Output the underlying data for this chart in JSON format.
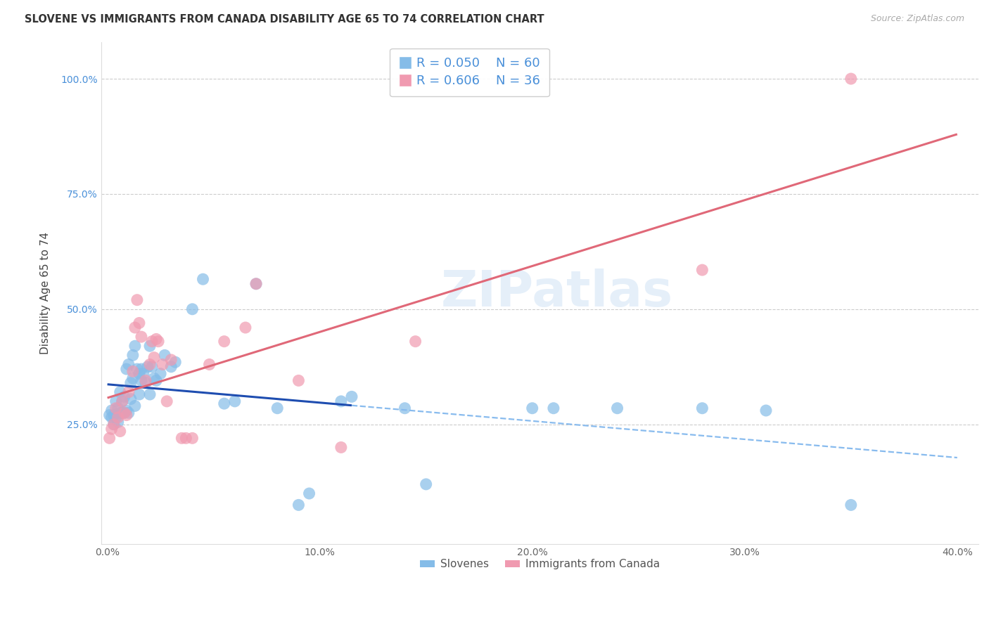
{
  "title": "SLOVENE VS IMMIGRANTS FROM CANADA DISABILITY AGE 65 TO 74 CORRELATION CHART",
  "source": "Source: ZipAtlas.com",
  "ylabel": "Disability Age 65 to 74",
  "xlim": [
    -0.003,
    0.41
  ],
  "ylim": [
    -0.01,
    1.08
  ],
  "xticks": [
    0.0,
    0.1,
    0.2,
    0.3,
    0.4
  ],
  "xtick_labels": [
    "0.0%",
    "10.0%",
    "20.0%",
    "30.0%",
    "40.0%"
  ],
  "yticks": [
    0.25,
    0.5,
    0.75,
    1.0
  ],
  "ytick_labels": [
    "25.0%",
    "50.0%",
    "75.0%",
    "100.0%"
  ],
  "grid_color": "#cccccc",
  "background_color": "#ffffff",
  "slovene_color": "#85bce8",
  "canada_color": "#f09ab0",
  "slovene_line_color": "#1e4db0",
  "slovene_dash_color": "#88bbee",
  "canada_line_color": "#e06878",
  "legend_R_slovene": "R = 0.050",
  "legend_N_slovene": "N = 60",
  "legend_R_canada": "R = 0.606",
  "legend_N_canada": "N = 36",
  "watermark": "ZIPatlas",
  "slovene_scatter": [
    [
      0.001,
      0.27
    ],
    [
      0.002,
      0.265
    ],
    [
      0.002,
      0.28
    ],
    [
      0.003,
      0.25
    ],
    [
      0.003,
      0.27
    ],
    [
      0.004,
      0.3
    ],
    [
      0.004,
      0.265
    ],
    [
      0.005,
      0.285
    ],
    [
      0.005,
      0.255
    ],
    [
      0.006,
      0.32
    ],
    [
      0.006,
      0.275
    ],
    [
      0.007,
      0.3
    ],
    [
      0.007,
      0.275
    ],
    [
      0.008,
      0.31
    ],
    [
      0.008,
      0.275
    ],
    [
      0.009,
      0.37
    ],
    [
      0.009,
      0.28
    ],
    [
      0.01,
      0.38
    ],
    [
      0.01,
      0.275
    ],
    [
      0.011,
      0.34
    ],
    [
      0.011,
      0.305
    ],
    [
      0.012,
      0.4
    ],
    [
      0.012,
      0.35
    ],
    [
      0.013,
      0.29
    ],
    [
      0.013,
      0.42
    ],
    [
      0.014,
      0.37
    ],
    [
      0.015,
      0.36
    ],
    [
      0.015,
      0.315
    ],
    [
      0.016,
      0.345
    ],
    [
      0.016,
      0.37
    ],
    [
      0.017,
      0.36
    ],
    [
      0.018,
      0.34
    ],
    [
      0.019,
      0.375
    ],
    [
      0.02,
      0.315
    ],
    [
      0.02,
      0.42
    ],
    [
      0.021,
      0.375
    ],
    [
      0.022,
      0.35
    ],
    [
      0.023,
      0.345
    ],
    [
      0.025,
      0.36
    ],
    [
      0.027,
      0.4
    ],
    [
      0.03,
      0.375
    ],
    [
      0.032,
      0.385
    ],
    [
      0.04,
      0.5
    ],
    [
      0.045,
      0.565
    ],
    [
      0.055,
      0.295
    ],
    [
      0.06,
      0.3
    ],
    [
      0.07,
      0.555
    ],
    [
      0.08,
      0.285
    ],
    [
      0.09,
      0.075
    ],
    [
      0.095,
      0.1
    ],
    [
      0.11,
      0.3
    ],
    [
      0.115,
      0.31
    ],
    [
      0.14,
      0.285
    ],
    [
      0.15,
      0.12
    ],
    [
      0.2,
      0.285
    ],
    [
      0.21,
      0.285
    ],
    [
      0.24,
      0.285
    ],
    [
      0.28,
      0.285
    ],
    [
      0.31,
      0.28
    ],
    [
      0.35,
      0.075
    ]
  ],
  "canada_scatter": [
    [
      0.001,
      0.22
    ],
    [
      0.002,
      0.24
    ],
    [
      0.003,
      0.25
    ],
    [
      0.004,
      0.285
    ],
    [
      0.005,
      0.265
    ],
    [
      0.006,
      0.235
    ],
    [
      0.007,
      0.3
    ],
    [
      0.008,
      0.275
    ],
    [
      0.009,
      0.27
    ],
    [
      0.01,
      0.32
    ],
    [
      0.012,
      0.365
    ],
    [
      0.013,
      0.46
    ],
    [
      0.014,
      0.52
    ],
    [
      0.015,
      0.47
    ],
    [
      0.016,
      0.44
    ],
    [
      0.018,
      0.345
    ],
    [
      0.02,
      0.38
    ],
    [
      0.021,
      0.43
    ],
    [
      0.022,
      0.395
    ],
    [
      0.023,
      0.435
    ],
    [
      0.024,
      0.43
    ],
    [
      0.026,
      0.38
    ],
    [
      0.028,
      0.3
    ],
    [
      0.03,
      0.39
    ],
    [
      0.035,
      0.22
    ],
    [
      0.037,
      0.22
    ],
    [
      0.04,
      0.22
    ],
    [
      0.048,
      0.38
    ],
    [
      0.055,
      0.43
    ],
    [
      0.065,
      0.46
    ],
    [
      0.07,
      0.555
    ],
    [
      0.09,
      0.345
    ],
    [
      0.11,
      0.2
    ],
    [
      0.145,
      0.43
    ],
    [
      0.28,
      0.585
    ],
    [
      0.35,
      1.0
    ]
  ],
  "slovene_line_start": 0.0,
  "slovene_line_solid_end": 0.115,
  "slovene_line_end": 0.4,
  "canada_line_start": 0.0,
  "canada_line_end": 0.4
}
